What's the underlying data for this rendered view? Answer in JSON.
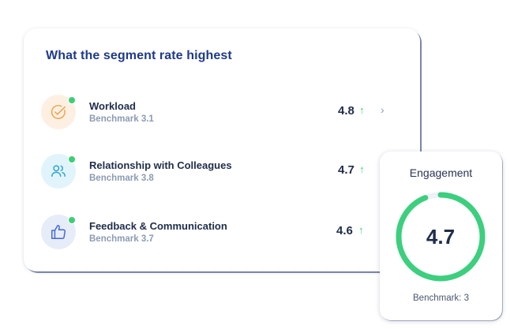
{
  "segment_card": {
    "title": "What the segment rate highest",
    "items": [
      {
        "label": "Workload",
        "benchmark": "Benchmark 3.1",
        "score": "4.8",
        "icon": "check-circle-icon",
        "color": "#f0a24a"
      },
      {
        "label": "Relationship with Colleagues",
        "benchmark": "Benchmark 3.8",
        "score": "4.7",
        "icon": "users-icon",
        "color": "#2fa4d3"
      },
      {
        "label": "Feedback & Communication",
        "benchmark": "Benchmark 3.7",
        "score": "4.6",
        "icon": "thumbs-up-icon",
        "color": "#4169d6"
      }
    ],
    "trend_symbol": "↑",
    "chevron_symbol": "›"
  },
  "engagement_card": {
    "title": "Engagement",
    "value": "4.7",
    "benchmark": "Benchmark: 3",
    "fraction": 0.94,
    "accent": "#3ccf7e",
    "track": "#eef1f5"
  }
}
